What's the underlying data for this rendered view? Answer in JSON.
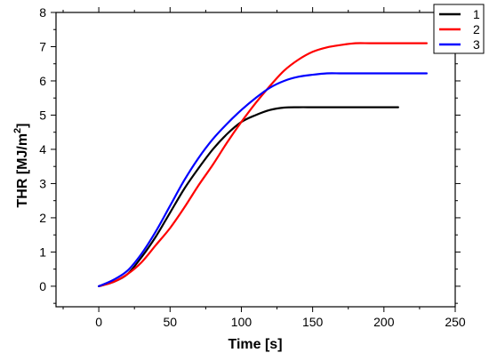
{
  "chart_data": {
    "type": "line",
    "title": "",
    "xlabel": "Time [s]",
    "ylabel_main": "THR [MJ/m",
    "ylabel_sup": "2",
    "ylabel_close": "]",
    "xlim": [
      -30,
      250
    ],
    "ylim": [
      -0.6,
      8
    ],
    "xticks": [
      0,
      50,
      100,
      150,
      200,
      250
    ],
    "yticks": [
      0,
      1,
      2,
      3,
      4,
      5,
      6,
      7,
      8
    ],
    "grid": false,
    "legend_position": "top-right",
    "series": [
      {
        "name": "1",
        "color": "#000000",
        "x": [
          0,
          10,
          20,
          30,
          40,
          50,
          60,
          70,
          80,
          90,
          100,
          110,
          120,
          130,
          140,
          150,
          160,
          180,
          200,
          210
        ],
        "y": [
          0,
          0.12,
          0.35,
          0.85,
          1.45,
          2.15,
          2.85,
          3.45,
          4.0,
          4.45,
          4.8,
          5.0,
          5.15,
          5.22,
          5.23,
          5.23,
          5.23,
          5.23,
          5.23,
          5.23
        ]
      },
      {
        "name": "2",
        "color": "#ff0000",
        "x": [
          0,
          10,
          20,
          30,
          40,
          50,
          60,
          70,
          80,
          90,
          100,
          110,
          120,
          130,
          140,
          150,
          160,
          170,
          180,
          190,
          200,
          210,
          220,
          230
        ],
        "y": [
          0,
          0.12,
          0.35,
          0.7,
          1.2,
          1.7,
          2.3,
          2.95,
          3.55,
          4.2,
          4.8,
          5.35,
          5.85,
          6.3,
          6.62,
          6.85,
          6.98,
          7.05,
          7.1,
          7.1,
          7.1,
          7.1,
          7.1,
          7.1
        ]
      },
      {
        "name": "3",
        "color": "#0000ff",
        "x": [
          0,
          10,
          20,
          30,
          40,
          50,
          60,
          70,
          80,
          90,
          100,
          110,
          120,
          130,
          140,
          150,
          160,
          170,
          180,
          200,
          230
        ],
        "y": [
          0,
          0.18,
          0.45,
          0.95,
          1.6,
          2.35,
          3.1,
          3.75,
          4.3,
          4.75,
          5.15,
          5.5,
          5.8,
          6.0,
          6.12,
          6.18,
          6.22,
          6.22,
          6.22,
          6.22,
          6.22
        ]
      }
    ]
  }
}
